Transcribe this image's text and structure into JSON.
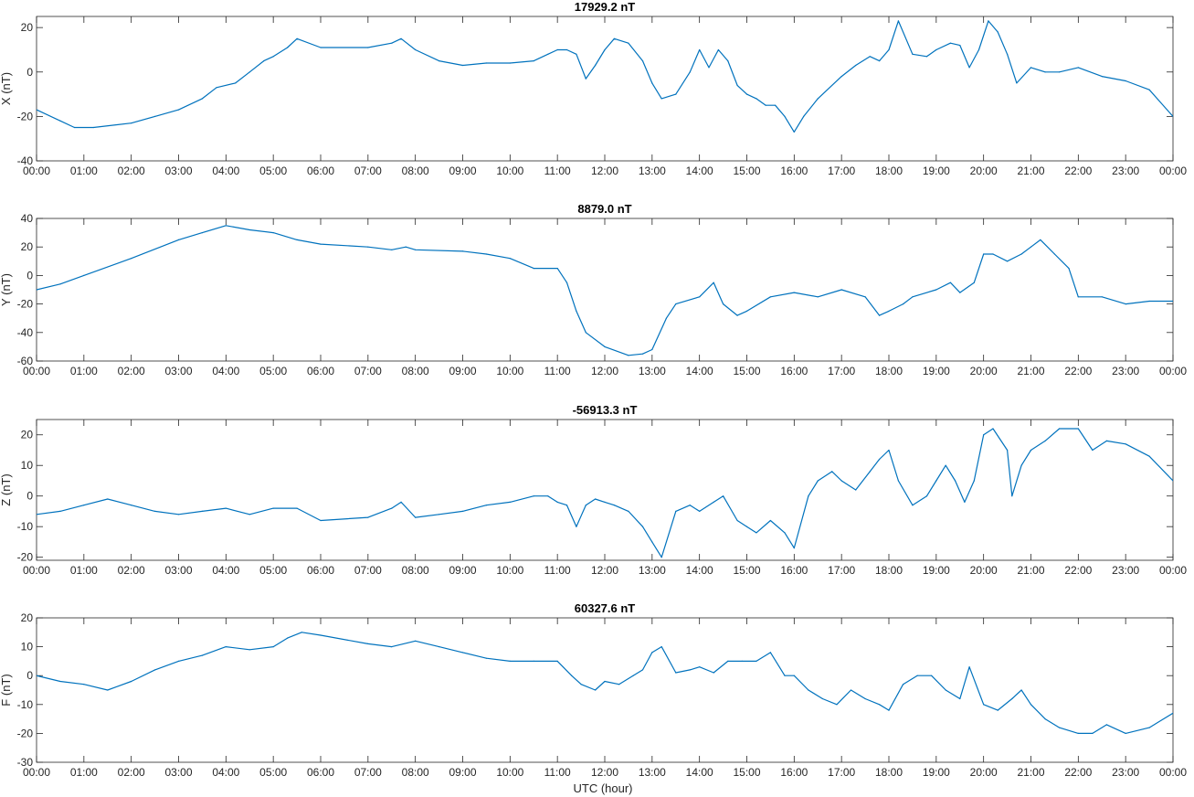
{
  "colors": {
    "series": "#0072BD",
    "axis": "#262626",
    "background": "#ffffff"
  },
  "x_axis": {
    "label": "UTC (hour)",
    "tick_labels": [
      "00:00",
      "01:00",
      "02:00",
      "03:00",
      "04:00",
      "05:00",
      "06:00",
      "07:00",
      "08:00",
      "09:00",
      "10:00",
      "11:00",
      "12:00",
      "13:00",
      "14:00",
      "15:00",
      "16:00",
      "17:00",
      "18:00",
      "19:00",
      "20:00",
      "21:00",
      "22:00",
      "23:00",
      "00:00"
    ]
  },
  "chart_data": [
    {
      "type": "line",
      "title": "17929.2 nT",
      "ylabel": "X (nT)",
      "xlim": [
        0,
        24
      ],
      "ylim": [
        -40,
        25
      ],
      "yticks": [
        20,
        0,
        -20,
        -40
      ],
      "grid": false,
      "series": [
        {
          "x": [
            0,
            0.5,
            0.8,
            1.2,
            2.0,
            2.5,
            3.0,
            3.5,
            3.8,
            4.2,
            4.5,
            4.8,
            5.0,
            5.3,
            5.5,
            6.0,
            7.0,
            7.5,
            7.7,
            8.0,
            8.5,
            9.0,
            9.5,
            10.0,
            10.5,
            10.8,
            11.0,
            11.2,
            11.4,
            11.6,
            11.8,
            12.0,
            12.2,
            12.5,
            12.8,
            13.0,
            13.2,
            13.5,
            13.8,
            14.0,
            14.2,
            14.4,
            14.6,
            14.8,
            15.0,
            15.2,
            15.4,
            15.6,
            15.8,
            16.0,
            16.2,
            16.5,
            17.0,
            17.3,
            17.6,
            17.8,
            18.0,
            18.2,
            18.5,
            18.8,
            19.0,
            19.3,
            19.5,
            19.7,
            19.9,
            20.1,
            20.3,
            20.5,
            20.7,
            21.0,
            21.3,
            21.6,
            22.0,
            22.5,
            23.0,
            23.5,
            24.0
          ],
          "values": [
            -17,
            -22,
            -25,
            -25,
            -23,
            -20,
            -17,
            -12,
            -7,
            -5,
            0,
            5,
            7,
            11,
            15,
            11,
            11,
            13,
            15,
            10,
            5,
            3,
            4,
            4,
            5,
            8,
            10,
            10,
            8,
            -3,
            3,
            10,
            15,
            13,
            5,
            -5,
            -12,
            -10,
            0,
            10,
            2,
            10,
            5,
            -6,
            -10,
            -12,
            -15,
            -15,
            -20,
            -27,
            -20,
            -12,
            -2,
            3,
            7,
            5,
            10,
            23,
            8,
            7,
            10,
            13,
            12,
            2,
            10,
            23,
            18,
            8,
            -5,
            2,
            0,
            0,
            2,
            -2,
            -4,
            -8,
            -20
          ]
        }
      ]
    },
    {
      "type": "line",
      "title": "8879.0 nT",
      "ylabel": "Y (nT)",
      "xlim": [
        0,
        24
      ],
      "ylim": [
        -60,
        40
      ],
      "yticks": [
        40,
        20,
        0,
        -20,
        -40,
        -60
      ],
      "grid": false,
      "series": [
        {
          "x": [
            0,
            0.5,
            1.0,
            2.0,
            3.0,
            3.5,
            4.0,
            4.5,
            5.0,
            5.5,
            6.0,
            7.0,
            7.5,
            7.8,
            8.0,
            9.0,
            9.5,
            10.0,
            10.5,
            11.0,
            11.2,
            11.4,
            11.6,
            12.0,
            12.5,
            12.8,
            13.0,
            13.3,
            13.5,
            14.0,
            14.3,
            14.5,
            14.8,
            15.0,
            15.5,
            16.0,
            16.5,
            17.0,
            17.5,
            17.8,
            18.0,
            18.3,
            18.5,
            19.0,
            19.3,
            19.5,
            19.8,
            20.0,
            20.2,
            20.5,
            20.8,
            21.0,
            21.2,
            21.5,
            21.8,
            22.0,
            22.5,
            23.0,
            23.5,
            24.0
          ],
          "values": [
            -10,
            -6,
            0,
            12,
            25,
            30,
            35,
            32,
            30,
            25,
            22,
            20,
            18,
            20,
            18,
            17,
            15,
            12,
            5,
            5,
            -5,
            -25,
            -40,
            -50,
            -56,
            -55,
            -52,
            -30,
            -20,
            -15,
            -5,
            -20,
            -28,
            -25,
            -15,
            -12,
            -15,
            -10,
            -15,
            -28,
            -25,
            -20,
            -15,
            -10,
            -5,
            -12,
            -5,
            15,
            15,
            10,
            15,
            20,
            25,
            15,
            5,
            -15,
            -15,
            -20,
            -18,
            -18
          ]
        }
      ]
    },
    {
      "type": "line",
      "title": "-56913.3 nT",
      "ylabel": "Z (nT)",
      "xlim": [
        0,
        24
      ],
      "ylim": [
        -21,
        25
      ],
      "yticks": [
        20,
        10,
        0,
        -10,
        -20
      ],
      "grid": false,
      "series": [
        {
          "x": [
            0,
            0.5,
            1.0,
            1.5,
            2.0,
            2.5,
            3.0,
            3.5,
            4.0,
            4.5,
            5.0,
            5.5,
            6.0,
            7.0,
            7.5,
            7.7,
            8.0,
            8.5,
            9.0,
            9.5,
            10.0,
            10.5,
            10.8,
            11.0,
            11.2,
            11.4,
            11.6,
            11.8,
            12.0,
            12.2,
            12.5,
            12.8,
            13.0,
            13.2,
            13.5,
            13.8,
            14.0,
            14.3,
            14.5,
            14.8,
            15.0,
            15.2,
            15.5,
            15.8,
            16.0,
            16.3,
            16.5,
            16.8,
            17.0,
            17.3,
            17.6,
            17.8,
            18.0,
            18.2,
            18.5,
            18.8,
            19.0,
            19.2,
            19.4,
            19.6,
            19.8,
            20.0,
            20.2,
            20.5,
            20.6,
            20.8,
            21.0,
            21.3,
            21.6,
            22.0,
            22.3,
            22.6,
            23.0,
            23.5,
            24.0
          ],
          "values": [
            -6,
            -5,
            -3,
            -1,
            -3,
            -5,
            -6,
            -5,
            -4,
            -6,
            -4,
            -4,
            -8,
            -7,
            -4,
            -2,
            -7,
            -6,
            -5,
            -3,
            -2,
            0,
            0,
            -2,
            -3,
            -10,
            -3,
            -1,
            -2,
            -3,
            -5,
            -10,
            -15,
            -20,
            -5,
            -3,
            -5,
            -2,
            0,
            -8,
            -10,
            -12,
            -8,
            -12,
            -17,
            0,
            5,
            8,
            5,
            2,
            8,
            12,
            15,
            5,
            -3,
            0,
            5,
            10,
            5,
            -2,
            5,
            20,
            22,
            15,
            0,
            10,
            15,
            18,
            22,
            22,
            15,
            18,
            17,
            13,
            5
          ]
        }
      ]
    },
    {
      "type": "line",
      "title": "60327.6 nT",
      "ylabel": "F (nT)",
      "xlim": [
        0,
        24
      ],
      "ylim": [
        -30,
        20
      ],
      "yticks": [
        20,
        10,
        0,
        -10,
        -20,
        -30
      ],
      "grid": false,
      "series": [
        {
          "x": [
            0,
            0.5,
            1.0,
            1.5,
            2.0,
            2.5,
            3.0,
            3.5,
            4.0,
            4.5,
            5.0,
            5.3,
            5.6,
            6.0,
            7.0,
            7.5,
            8.0,
            8.5,
            9.0,
            9.5,
            10.0,
            10.5,
            11.0,
            11.3,
            11.5,
            11.8,
            12.0,
            12.3,
            12.6,
            12.8,
            13.0,
            13.2,
            13.5,
            13.8,
            14.0,
            14.3,
            14.6,
            14.9,
            15.2,
            15.5,
            15.8,
            16.0,
            16.3,
            16.6,
            16.9,
            17.2,
            17.5,
            17.8,
            18.0,
            18.3,
            18.6,
            18.9,
            19.2,
            19.5,
            19.7,
            20.0,
            20.3,
            20.6,
            20.8,
            21.0,
            21.3,
            21.6,
            22.0,
            22.3,
            22.6,
            23.0,
            23.5,
            24.0
          ],
          "values": [
            0,
            -2,
            -3,
            -5,
            -2,
            2,
            5,
            7,
            10,
            9,
            10,
            13,
            15,
            14,
            11,
            10,
            12,
            10,
            8,
            6,
            5,
            5,
            5,
            0,
            -3,
            -5,
            -2,
            -3,
            0,
            2,
            8,
            10,
            1,
            2,
            3,
            1,
            5,
            5,
            5,
            8,
            0,
            0,
            -5,
            -8,
            -10,
            -5,
            -8,
            -10,
            -12,
            -3,
            0,
            0,
            -5,
            -8,
            3,
            -10,
            -12,
            -8,
            -5,
            -10,
            -15,
            -18,
            -20,
            -20,
            -17,
            -20,
            -18,
            -13
          ]
        }
      ]
    }
  ]
}
